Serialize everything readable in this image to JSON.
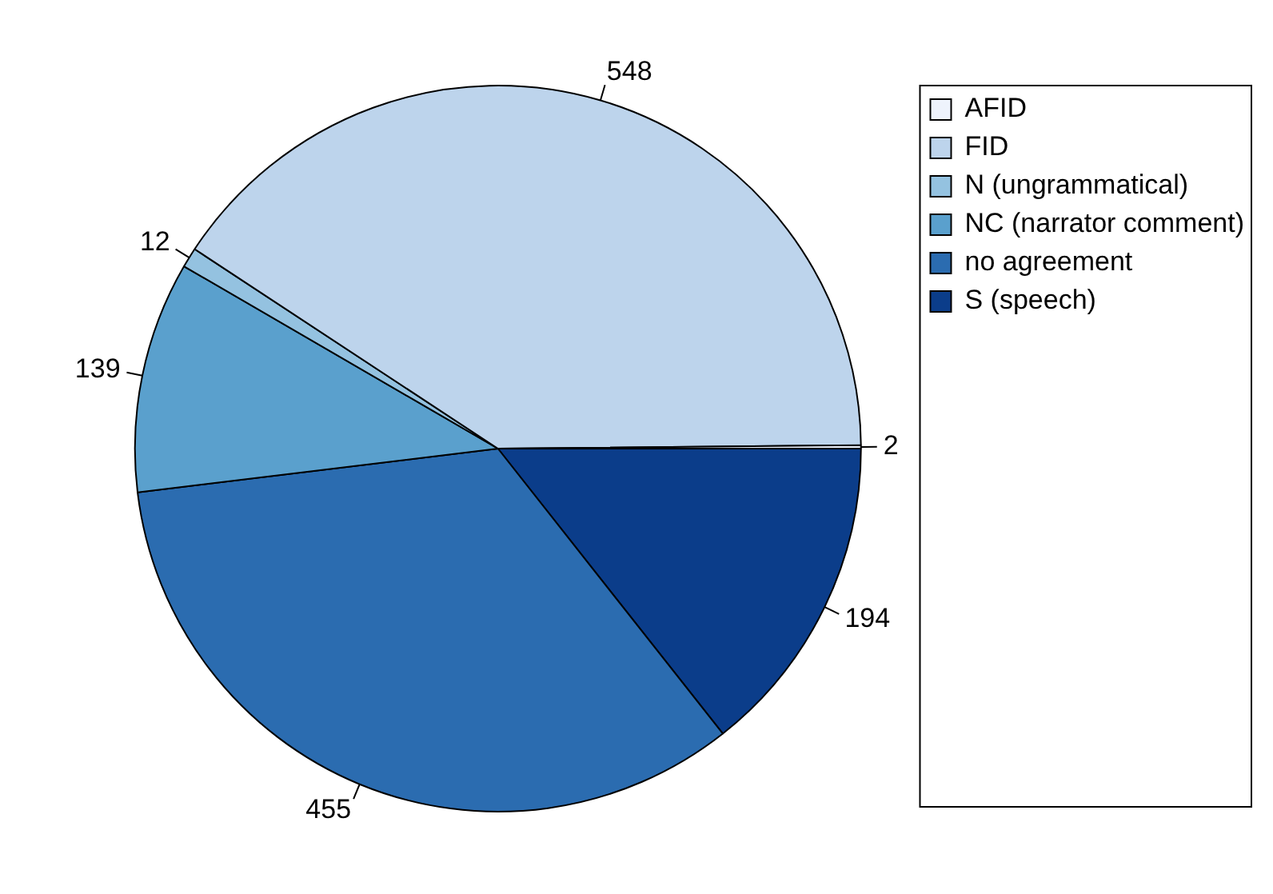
{
  "chart_data": {
    "type": "pie",
    "categories": [
      "AFID",
      "FID",
      "N (ungrammatical)",
      "NC (narrator comment)",
      "no agreement",
      "S (speech)"
    ],
    "values": [
      2,
      548,
      12,
      139,
      455,
      194
    ],
    "colors": [
      "#eef3fc",
      "#bdd4ec",
      "#94c2e0",
      "#5aa0cd",
      "#2b6cb0",
      "#0b3d8a"
    ],
    "data_labels": true,
    "legend": "top right"
  }
}
